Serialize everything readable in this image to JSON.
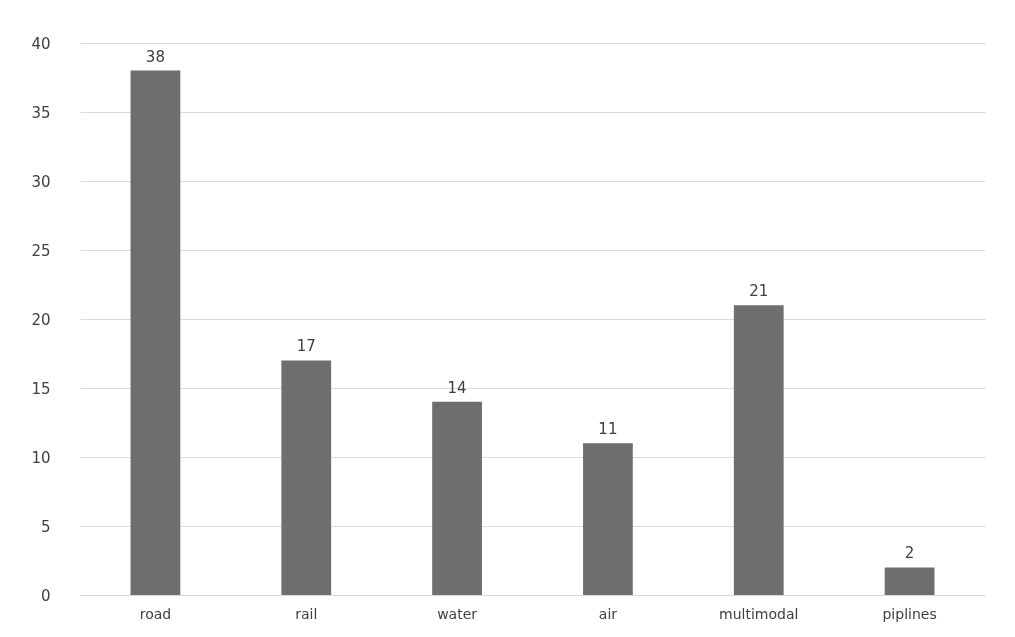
{
  "chart_data": {
    "type": "bar",
    "categories": [
      "road",
      "rail",
      "water",
      "air",
      "multimodal",
      "piplines"
    ],
    "values": [
      38,
      17,
      14,
      11,
      21,
      2
    ],
    "color": "#6e6e6e",
    "ylim": [
      0,
      40
    ],
    "yticks": [
      0,
      5,
      10,
      15,
      20,
      25,
      30,
      35,
      40
    ],
    "grid": "y",
    "data_labels": true
  }
}
